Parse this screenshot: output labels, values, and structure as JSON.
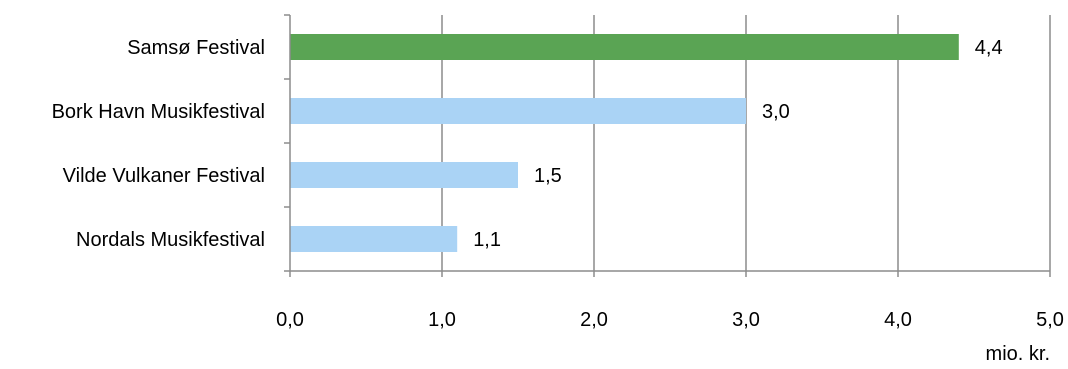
{
  "chart_data": {
    "type": "bar",
    "orientation": "horizontal",
    "categories": [
      "Samsø Festival",
      "Bork Havn Musikfestival",
      "Vilde Vulkaner Festival",
      "Nordals Musikfestival"
    ],
    "values": [
      4.4,
      3.0,
      1.5,
      1.1
    ],
    "value_labels": [
      "4,4",
      "3,0",
      "1,5",
      "1,1"
    ],
    "bar_colors": [
      "#5aa454",
      "#aad3f5",
      "#aad3f5",
      "#aad3f5"
    ],
    "xlim": [
      0,
      5
    ],
    "xticks": [
      "0,0",
      "1,0",
      "2,0",
      "3,0",
      "4,0",
      "5,0"
    ],
    "xlabel": "mio. kr.",
    "grid": "vertical",
    "legend": "none"
  }
}
